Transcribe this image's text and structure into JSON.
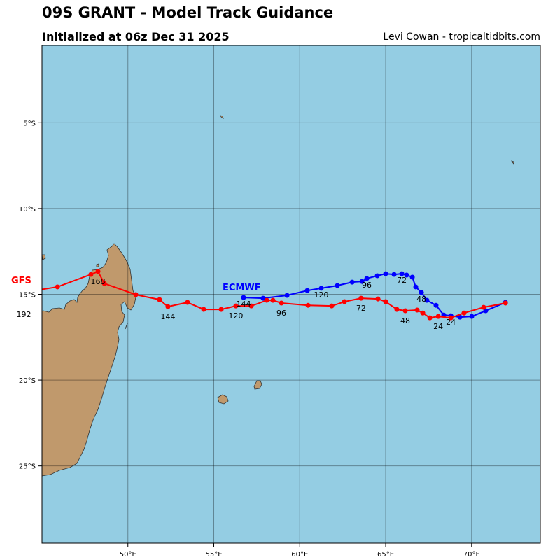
{
  "header": {
    "title": "09S GRANT - Model Track Guidance",
    "subtitle": "Initialized at 06z Dec 31 2025",
    "credit": "Levi Cowan - tropicaltidbits.com"
  },
  "map": {
    "extent": {
      "lon": [
        45,
        74
      ],
      "lat_south": [
        0.5,
        29.5
      ]
    },
    "ocean_color": "#94cde3",
    "land_color": "#c0996c",
    "lat_ticks": [
      "5°S",
      "10°S",
      "15°S",
      "20°S",
      "25°S"
    ],
    "lon_ticks": [
      "50°E",
      "55°E",
      "60°E",
      "65°E",
      "70°E"
    ]
  },
  "models": [
    {
      "name": "ECMWF",
      "color": "#0000ff",
      "points_lon_latS": [
        [
          71.97,
          15.47
        ],
        [
          70.82,
          15.96
        ],
        [
          70.01,
          16.29
        ],
        [
          69.32,
          16.33
        ],
        [
          68.79,
          16.25
        ],
        [
          68.38,
          16.21
        ],
        [
          67.93,
          15.64
        ],
        [
          67.4,
          15.35
        ],
        [
          67.08,
          14.9
        ],
        [
          66.75,
          14.57
        ],
        [
          66.55,
          14.0
        ],
        [
          66.22,
          13.88
        ],
        [
          65.94,
          13.8
        ],
        [
          65.49,
          13.84
        ],
        [
          65.0,
          13.8
        ],
        [
          64.51,
          13.92
        ],
        [
          63.9,
          14.08
        ],
        [
          63.62,
          14.25
        ],
        [
          63.05,
          14.29
        ],
        [
          62.19,
          14.49
        ],
        [
          61.25,
          14.65
        ],
        [
          60.44,
          14.78
        ],
        [
          59.26,
          15.06
        ],
        [
          57.87,
          15.23
        ],
        [
          56.73,
          15.19
        ]
      ],
      "hour_labels": [
        {
          "hour": "24",
          "index": 4
        },
        {
          "hour": "48",
          "index": 8
        },
        {
          "hour": "72",
          "index": 12
        },
        {
          "hour": "96",
          "index": 16
        },
        {
          "hour": "120",
          "index": 20
        },
        {
          "hour": "144",
          "index": 24
        }
      ]
    },
    {
      "name": "GFS",
      "color": "#ff0000",
      "points_lon_latS": [
        [
          71.97,
          15.51
        ],
        [
          70.7,
          15.76
        ],
        [
          69.56,
          16.09
        ],
        [
          68.79,
          16.37
        ],
        [
          68.06,
          16.29
        ],
        [
          67.57,
          16.37
        ],
        [
          67.16,
          16.09
        ],
        [
          66.83,
          15.92
        ],
        [
          66.14,
          15.96
        ],
        [
          65.65,
          15.88
        ],
        [
          65.0,
          15.43
        ],
        [
          64.55,
          15.27
        ],
        [
          63.57,
          15.23
        ],
        [
          62.6,
          15.43
        ],
        [
          61.86,
          15.68
        ],
        [
          60.48,
          15.64
        ],
        [
          58.93,
          15.51
        ],
        [
          58.44,
          15.35
        ],
        [
          58.08,
          15.35
        ],
        [
          57.18,
          15.68
        ],
        [
          56.28,
          15.68
        ],
        [
          55.43,
          15.88
        ],
        [
          54.41,
          15.88
        ],
        [
          53.47,
          15.47
        ],
        [
          52.33,
          15.72
        ],
        [
          51.84,
          15.31
        ],
        [
          50.46,
          15.02
        ],
        [
          48.63,
          14.37
        ],
        [
          48.26,
          13.67
        ],
        [
          47.85,
          13.84
        ],
        [
          45.9,
          14.57
        ],
        [
          44.6,
          14.78
        ],
        [
          43.94,
          15.6
        ]
      ],
      "hour_labels": [
        {
          "hour": "24",
          "index": 4
        },
        {
          "hour": "48",
          "index": 8
        },
        {
          "hour": "72",
          "index": 12
        },
        {
          "hour": "96",
          "index": 16
        },
        {
          "hour": "120",
          "index": 20
        },
        {
          "hour": "144",
          "index": 24
        },
        {
          "hour": "168",
          "index": 28
        },
        {
          "hour": "192",
          "index": 32
        }
      ]
    }
  ]
}
